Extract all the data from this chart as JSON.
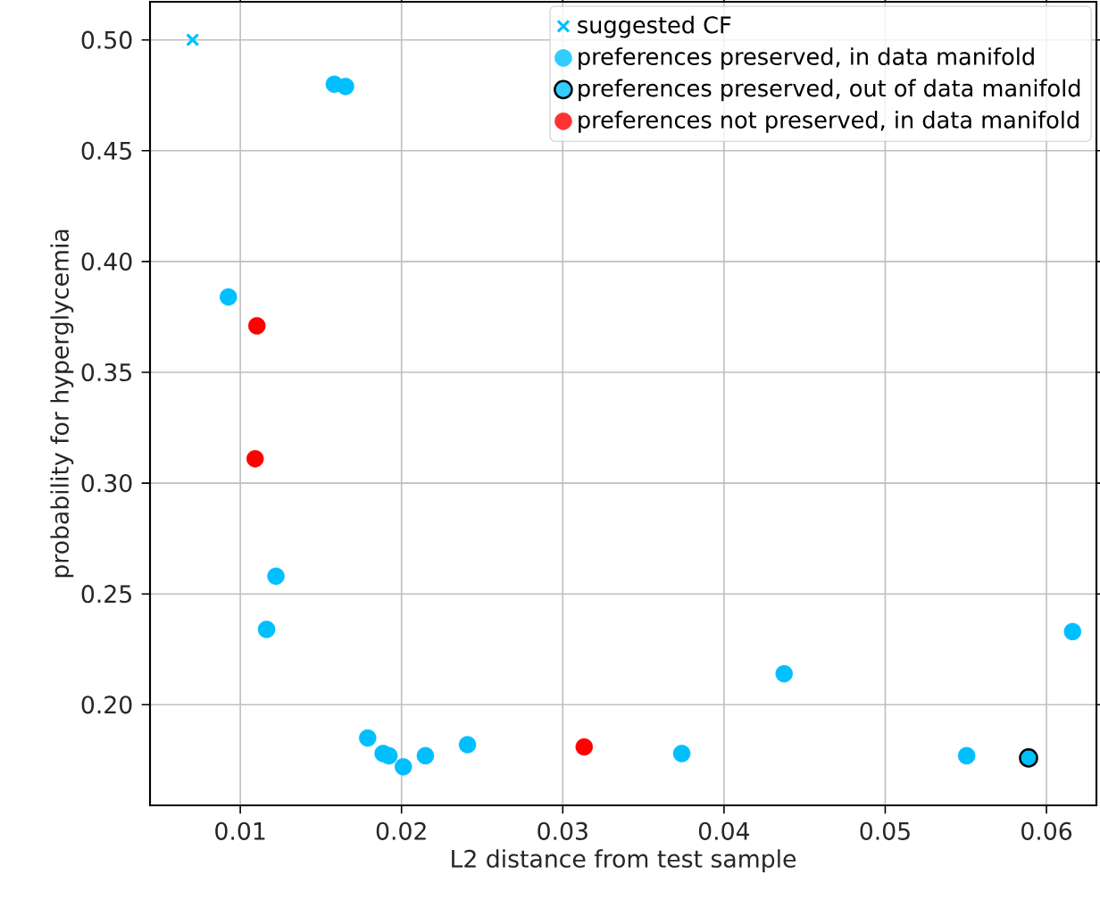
{
  "chart_data": {
    "type": "scatter",
    "xlabel": "L2 distance from test sample",
    "ylabel": "probability for hyperglycemia",
    "xlim": [
      0.0044,
      0.0631
    ],
    "ylim": [
      0.1546,
      0.5172
    ],
    "xticks": [
      0.01,
      0.02,
      0.03,
      0.04,
      0.05,
      0.06
    ],
    "yticks": [
      {
        "value": 0.2,
        "label": "0.20"
      },
      {
        "value": 0.25,
        "label": "0.25"
      },
      {
        "value": 0.3,
        "label": "0.30"
      },
      {
        "value": 0.35,
        "label": "0.35"
      },
      {
        "value": 0.4,
        "label": "0.40"
      },
      {
        "value": 0.45,
        "label": "0.45"
      },
      {
        "value": 0.5,
        "label": "0.50"
      }
    ],
    "grid": true,
    "legend": "top right",
    "marker": "circle",
    "series": [
      {
        "name": "suggested CF",
        "color": "#00bfff",
        "marker": "cross",
        "x": [
          0.00704
        ],
        "values": [
          0.5
        ]
      },
      {
        "name": "preferences preserved, in data manifold",
        "color": "#00bfff",
        "x": [
          0.01583,
          0.01653,
          0.00926,
          0.01221,
          0.01163,
          0.0179,
          0.01886,
          0.01922,
          0.02011,
          0.02148,
          0.02409,
          0.03738,
          0.04373,
          0.05505,
          0.06162
        ],
        "values": [
          0.48,
          0.479,
          0.384,
          0.258,
          0.234,
          0.185,
          0.178,
          0.177,
          0.172,
          0.177,
          0.182,
          0.178,
          0.214,
          0.177,
          0.233
        ]
      },
      {
        "name": "preferences preserved, out of data manifold",
        "color": "#00bfff",
        "x": [
          0.05889
        ],
        "values": [
          0.176
        ]
      },
      {
        "name": "preferences not preserved, in data manifold",
        "color": "#ff0000",
        "x": [
          0.01103,
          0.01092,
          0.03133
        ],
        "values": [
          0.371,
          0.311,
          0.181
        ]
      }
    ]
  }
}
